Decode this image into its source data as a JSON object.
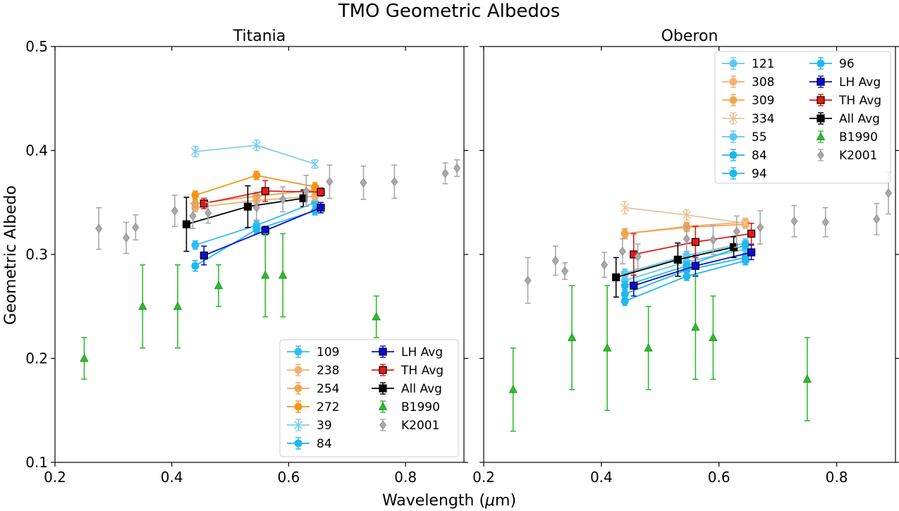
{
  "chart_data": {
    "type": "scatter",
    "title": "TMO Geometric Albedos",
    "xlabel": "Wavelength (",
    "xlabel_mu": "μ",
    "xlabel_unit": "m)",
    "ylabel": "Geometric Albedo",
    "xlim": [
      0.2,
      0.9
    ],
    "ylim": [
      0.1,
      0.5
    ],
    "xticks": [
      0.2,
      0.4,
      0.6,
      0.8
    ],
    "yticks": [
      0.1,
      0.2,
      0.3,
      0.4,
      0.5
    ],
    "xtick_labels": [
      "0.2",
      "0.4",
      "0.6",
      "0.8"
    ],
    "ytick_labels": [
      "0.1",
      "0.2",
      "0.3",
      "0.4",
      "0.5"
    ],
    "panels": [
      {
        "title": "Titania",
        "legend_position": "lower-right",
        "series": [
          {
            "name": "109",
            "marker": "circle",
            "color": "#30BDF0",
            "line": true,
            "x": [
              0.44,
              0.545,
              0.645
            ],
            "y": [
              0.309,
              0.328,
              0.35
            ],
            "err": [
              0.004,
              0.004,
              0.004
            ]
          },
          {
            "name": "238",
            "marker": "circle",
            "color": "#F2B071",
            "line": true,
            "x": [
              0.44,
              0.545,
              0.645
            ],
            "y": [
              0.345,
              0.352,
              0.356
            ],
            "err": [
              0.004,
              0.004,
              0.004
            ]
          },
          {
            "name": "254",
            "marker": "circle",
            "color": "#F2A550",
            "line": true,
            "x": [
              0.44,
              0.545,
              0.645
            ],
            "y": [
              0.349,
              0.356,
              0.362
            ],
            "err": [
              0.004,
              0.004,
              0.004
            ]
          },
          {
            "name": "272",
            "marker": "circle",
            "color": "#F39515",
            "line": true,
            "x": [
              0.44,
              0.545,
              0.645
            ],
            "y": [
              0.357,
              0.376,
              0.365
            ],
            "err": [
              0.004,
              0.004,
              0.004
            ]
          },
          {
            "name": "39",
            "marker": "x",
            "color": "#7DCFEC",
            "line": true,
            "x": [
              0.44,
              0.545,
              0.645
            ],
            "y": [
              0.399,
              0.405,
              0.387
            ],
            "err": [
              0.005,
              0.005,
              0.004
            ]
          },
          {
            "name": "84",
            "marker": "circle",
            "color": "#1FB8EE",
            "line": true,
            "x": [
              0.44,
              0.545,
              0.645
            ],
            "y": [
              0.289,
              0.324,
              0.342
            ],
            "err": [
              0.005,
              0.004,
              0.004
            ]
          },
          {
            "name": "LH Avg",
            "marker": "square",
            "color": "#0B0BD6",
            "line": true,
            "x": [
              0.455,
              0.56,
              0.655
            ],
            "y": [
              0.299,
              0.323,
              0.345
            ],
            "err": [
              0.009,
              0.004,
              0.005
            ]
          },
          {
            "name": "TH Avg",
            "marker": "square",
            "color": "#E31A1A",
            "line": true,
            "x": [
              0.455,
              0.56,
              0.655
            ],
            "y": [
              0.349,
              0.361,
              0.36
            ],
            "err": [
              0.005,
              0.01,
              0.004
            ]
          },
          {
            "name": "All Avg",
            "marker": "square",
            "color": "#000000",
            "line": true,
            "x": [
              0.425,
              0.53,
              0.625
            ],
            "y": [
              0.329,
              0.346,
              0.354
            ],
            "err": [
              0.026,
              0.02,
              0.008
            ]
          },
          {
            "name": "B1990",
            "marker": "triangle",
            "color": "#2EBB2E",
            "line": false,
            "x": [
              0.25,
              0.35,
              0.41,
              0.48,
              0.56,
              0.59,
              0.75
            ],
            "y": [
              0.2,
              0.25,
              0.25,
              0.27,
              0.28,
              0.28,
              0.24
            ],
            "err": [
              0.02,
              0.04,
              0.04,
              0.02,
              0.04,
              0.04,
              0.02
            ]
          },
          {
            "name": "K2001",
            "marker": "diamond",
            "color": "#A9A9A9",
            "line": false,
            "x": [
              0.275,
              0.322,
              0.338,
              0.405,
              0.436,
              0.462,
              0.545,
              0.59,
              0.63,
              0.67,
              0.728,
              0.781,
              0.868,
              0.888
            ],
            "y": [
              0.325,
              0.316,
              0.326,
              0.342,
              0.337,
              0.34,
              0.345,
              0.353,
              0.361,
              0.37,
              0.369,
              0.37,
              0.378,
              0.383
            ],
            "err": [
              0.02,
              0.015,
              0.012,
              0.015,
              0.012,
              0.01,
              0.012,
              0.012,
              0.015,
              0.016,
              0.016,
              0.016,
              0.01,
              0.008
            ]
          }
        ]
      },
      {
        "title": "Oberon",
        "legend_position": "upper-right",
        "series": [
          {
            "name": "121",
            "marker": "circle",
            "color": "#5CC8F0",
            "line": true,
            "x": [
              0.44,
              0.545,
              0.645
            ],
            "y": [
              0.275,
              0.293,
              0.305
            ],
            "err": [
              0.004,
              0.004,
              0.004
            ]
          },
          {
            "name": "308",
            "marker": "circle",
            "color": "#F2B071",
            "line": true,
            "x": [
              0.44,
              0.545,
              0.645
            ],
            "y": [
              0.32,
              0.327,
              0.331
            ],
            "err": [
              0.005,
              0.004,
              0.004
            ]
          },
          {
            "name": "309",
            "marker": "circle",
            "color": "#F2A550",
            "line": true,
            "x": [
              0.44,
              0.545,
              0.645
            ],
            "y": [
              0.32,
              0.326,
              0.329
            ],
            "err": [
              0.004,
              0.004,
              0.004
            ]
          },
          {
            "name": "334",
            "marker": "x",
            "color": "#EBC59B",
            "line": true,
            "x": [
              0.44,
              0.545,
              0.645
            ],
            "y": [
              0.345,
              0.338,
              0.33
            ],
            "err": [
              0.006,
              0.005,
              0.005
            ]
          },
          {
            "name": "55",
            "marker": "circle",
            "color": "#5CC8F0",
            "line": true,
            "x": [
              0.44,
              0.545,
              0.645
            ],
            "y": [
              0.282,
              0.299,
              0.311
            ],
            "err": [
              0.004,
              0.004,
              0.004
            ]
          },
          {
            "name": "84",
            "marker": "circle",
            "color": "#1FB8EE",
            "line": true,
            "x": [
              0.44,
              0.545,
              0.645
            ],
            "y": [
              0.262,
              0.285,
              0.297
            ],
            "err": [
              0.004,
              0.004,
              0.004
            ]
          },
          {
            "name": "94",
            "marker": "circle",
            "color": "#1FB8EE",
            "line": true,
            "x": [
              0.44,
              0.545,
              0.645
            ],
            "y": [
              0.255,
              0.279,
              0.294
            ],
            "err": [
              0.004,
              0.004,
              0.004
            ]
          },
          {
            "name": "96",
            "marker": "circle",
            "color": "#1FB8EE",
            "line": true,
            "x": [
              0.44,
              0.545,
              0.645
            ],
            "y": [
              0.27,
              0.289,
              0.309
            ],
            "err": [
              0.004,
              0.004,
              0.004
            ]
          },
          {
            "name": "LH Avg",
            "marker": "square",
            "color": "#0B0BD6",
            "line": true,
            "x": [
              0.455,
              0.56,
              0.655
            ],
            "y": [
              0.27,
              0.289,
              0.302
            ],
            "err": [
              0.01,
              0.01,
              0.007
            ]
          },
          {
            "name": "TH Avg",
            "marker": "square",
            "color": "#E31A1A",
            "line": true,
            "x": [
              0.455,
              0.56,
              0.655
            ],
            "y": [
              0.3,
              0.312,
              0.32
            ],
            "err": [
              0.02,
              0.015,
              0.01
            ]
          },
          {
            "name": "All Avg",
            "marker": "square",
            "color": "#000000",
            "line": true,
            "x": [
              0.425,
              0.53,
              0.625
            ],
            "y": [
              0.278,
              0.295,
              0.307
            ],
            "err": [
              0.019,
              0.016,
              0.01
            ]
          },
          {
            "name": "B1990",
            "marker": "triangle",
            "color": "#2EBB2E",
            "line": false,
            "x": [
              0.25,
              0.35,
              0.41,
              0.48,
              0.56,
              0.59,
              0.75
            ],
            "y": [
              0.17,
              0.22,
              0.21,
              0.21,
              0.23,
              0.22,
              0.18
            ],
            "err": [
              0.04,
              0.05,
              0.06,
              0.04,
              0.05,
              0.04,
              0.04
            ]
          },
          {
            "name": "K2001",
            "marker": "diamond",
            "color": "#A9A9A9",
            "line": false,
            "x": [
              0.275,
              0.322,
              0.338,
              0.405,
              0.436,
              0.462,
              0.545,
              0.59,
              0.63,
              0.67,
              0.728,
              0.781,
              0.868,
              0.888
            ],
            "y": [
              0.275,
              0.294,
              0.284,
              0.29,
              0.303,
              0.298,
              0.315,
              0.314,
              0.322,
              0.326,
              0.332,
              0.331,
              0.334,
              0.359
            ],
            "err": [
              0.022,
              0.014,
              0.008,
              0.012,
              0.012,
              0.012,
              0.012,
              0.014,
              0.015,
              0.016,
              0.015,
              0.014,
              0.015,
              0.02
            ]
          }
        ]
      }
    ]
  }
}
